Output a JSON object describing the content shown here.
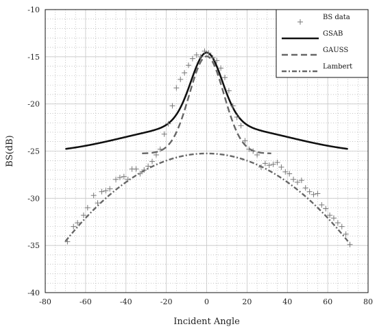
{
  "chart_data": {
    "type": "line",
    "xlabel": "Incident Angle",
    "ylabel": "BS(dB)",
    "xlim": [
      -80,
      80
    ],
    "ylim": [
      -40,
      -10
    ],
    "xticks": [
      -80,
      -60,
      -40,
      -20,
      0,
      20,
      40,
      60,
      80
    ],
    "yticks": [
      -10,
      -15,
      -20,
      -25,
      -30,
      -35,
      -40
    ],
    "grid": true,
    "legend_position": "top-right",
    "series": [
      {
        "name": "BS data",
        "kind": "scatter",
        "color": "#777777",
        "x": [
          -69,
          -66,
          -64,
          -61,
          -59,
          -56,
          -54,
          -52,
          -50,
          -48,
          -45,
          -43,
          -41,
          -39,
          -37,
          -35,
          -33,
          -31,
          -29,
          -27,
          -25,
          -23,
          -21,
          -19,
          -17,
          -15,
          -13,
          -11,
          -9,
          -7,
          -5,
          -3,
          -1,
          1,
          3,
          5,
          7,
          9,
          11,
          13,
          15,
          17,
          19,
          21,
          23,
          25,
          27,
          29,
          31,
          33,
          35,
          37,
          39,
          41,
          43,
          45,
          47,
          49,
          51,
          53,
          55,
          57,
          59,
          61,
          63,
          65,
          67,
          69,
          71
        ],
        "y": [
          -34.6,
          -33.0,
          -32.6,
          -31.8,
          -31.0,
          -29.7,
          -30.5,
          -29.3,
          -29.2,
          -29.0,
          -28.0,
          -27.8,
          -27.7,
          -28.0,
          -26.9,
          -26.9,
          -27.4,
          -27.0,
          -26.6,
          -26.1,
          -25.4,
          -24.8,
          -23.2,
          -22.1,
          -20.2,
          -18.3,
          -17.4,
          -16.7,
          -15.9,
          -15.2,
          -14.8,
          -15.0,
          -14.4,
          -14.6,
          -15.1,
          -15.4,
          -16.2,
          -17.2,
          -18.6,
          -20.2,
          -21.4,
          -22.3,
          -23.9,
          -24.8,
          -25.0,
          -25.4,
          -26.7,
          -26.3,
          -26.5,
          -26.4,
          -26.2,
          -26.7,
          -27.2,
          -27.4,
          -28.0,
          -28.3,
          -28.1,
          -28.9,
          -29.3,
          -29.6,
          -29.5,
          -30.7,
          -31.1,
          -31.8,
          -32.1,
          -32.6,
          -33.0,
          -33.8,
          -34.9
        ]
      },
      {
        "name": "GSAB",
        "kind": "solid",
        "color": "#111111",
        "A": 10.3,
        "sigma": 8.6,
        "B": -25.25,
        "k": 0.0019
      },
      {
        "name": "GAUSS",
        "kind": "dashed",
        "color": "#666666",
        "A": 10.3,
        "sigma": 8.6,
        "B": -25.25,
        "k": 0.0019
      },
      {
        "name": "Lambert",
        "kind": "dashdot",
        "color": "#666666",
        "A": 10.3,
        "sigma": 8.6,
        "B": -25.25,
        "k": 0.0019
      }
    ]
  }
}
